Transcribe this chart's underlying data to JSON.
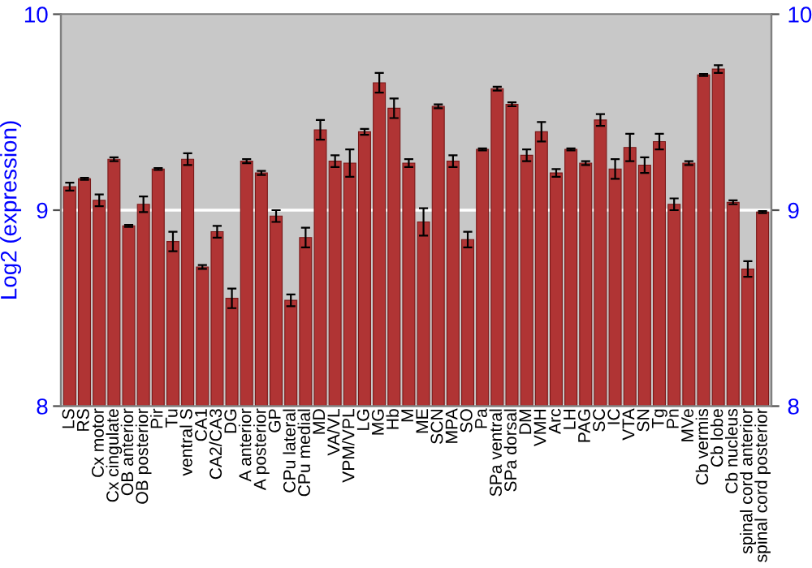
{
  "chart_data": {
    "type": "bar",
    "ylabel": "Log2 (expression)",
    "categories": [
      "LS",
      "RS",
      "Cx motor",
      "Cx cingulate",
      "OB anterior",
      "OB posterior",
      "Pir",
      "Tu",
      "ventral S",
      "CA1",
      "CA2/CA3",
      "DG",
      "A anterior",
      "A posterior",
      "GP",
      "CPu lateral",
      "CPu medial",
      "MD",
      "VA/VL",
      "VPM/VPL",
      "LG",
      "MG",
      "Hb",
      "M",
      "ME",
      "SCN",
      "MPA",
      "SO",
      "Pa",
      "SPa ventral",
      "SPa dorsal",
      "DM",
      "VMH",
      "Arc",
      "LH",
      "PAG",
      "SC",
      "IC",
      "VTA",
      "SN",
      "Tg",
      "Pn",
      "MVe",
      "Cb vermis",
      "Cb lobe",
      "Cb nucleus",
      "spinal cord anterior",
      "spinal cord posterior"
    ],
    "values": [
      9.12,
      9.16,
      9.05,
      9.26,
      8.92,
      9.03,
      9.21,
      8.84,
      9.26,
      8.71,
      8.89,
      8.55,
      9.25,
      9.19,
      8.97,
      8.54,
      8.86,
      9.41,
      9.25,
      9.24,
      9.4,
      9.65,
      9.52,
      9.24,
      8.94,
      9.53,
      9.25,
      8.85,
      9.31,
      9.62,
      9.54,
      9.28,
      9.4,
      9.19,
      9.31,
      9.24,
      9.46,
      9.21,
      9.32,
      9.23,
      9.35,
      9.03,
      9.24,
      9.69,
      9.72,
      9.04,
      8.7,
      8.99
    ],
    "errors": [
      0.02,
      0.005,
      0.03,
      0.01,
      0.005,
      0.04,
      0.005,
      0.05,
      0.03,
      0.01,
      0.03,
      0.05,
      0.01,
      0.01,
      0.03,
      0.03,
      0.05,
      0.05,
      0.03,
      0.07,
      0.015,
      0.05,
      0.05,
      0.02,
      0.07,
      0.01,
      0.03,
      0.04,
      0.005,
      0.01,
      0.01,
      0.03,
      0.05,
      0.02,
      0.005,
      0.01,
      0.03,
      0.05,
      0.07,
      0.04,
      0.04,
      0.03,
      0.01,
      0.005,
      0.02,
      0.01,
      0.04,
      0.005
    ],
    "color": "#b03434",
    "ylim": [
      8,
      10
    ],
    "yticks": [
      8,
      9,
      10
    ],
    "y2lim": [
      8,
      10
    ],
    "y2ticks": [
      8,
      9,
      10
    ],
    "grid": "y"
  }
}
